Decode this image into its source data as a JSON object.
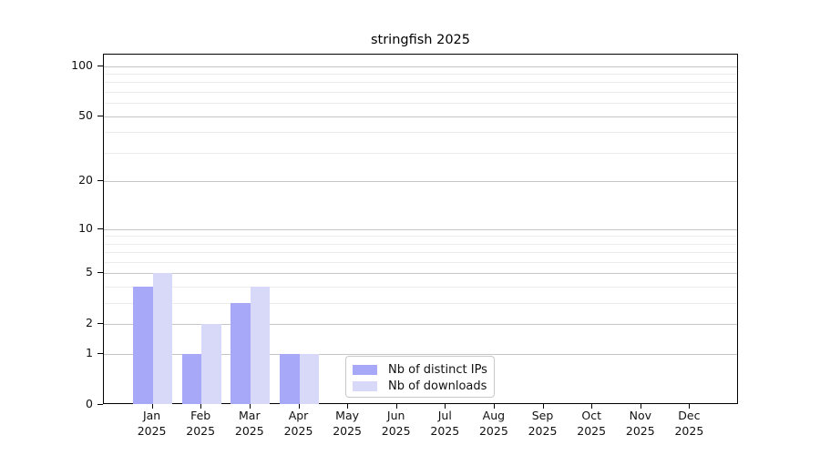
{
  "chart_data": {
    "type": "bar",
    "title": "stringfish 2025",
    "categories": [
      "Jan",
      "Feb",
      "Mar",
      "Apr",
      "May",
      "Jun",
      "Jul",
      "Aug",
      "Sep",
      "Oct",
      "Nov",
      "Dec"
    ],
    "x_tick_second_line": "2025",
    "series": [
      {
        "name": "Nb of distinct IPs",
        "color": "#a8a8f8",
        "values": [
          4,
          1,
          3,
          1,
          0,
          0,
          0,
          0,
          0,
          0,
          0,
          0
        ]
      },
      {
        "name": "Nb of downloads",
        "color": "#d8d8f8",
        "values": [
          5,
          2,
          4,
          1,
          0,
          0,
          0,
          0,
          0,
          0,
          0,
          0
        ]
      }
    ],
    "yscale": "log1p",
    "ylim": [
      0,
      117
    ],
    "yticks_major": [
      0,
      1,
      2,
      5,
      10,
      20,
      50,
      100
    ],
    "yticks_minor": [
      3,
      4,
      6,
      7,
      8,
      9,
      30,
      40,
      60,
      70,
      80,
      90
    ],
    "grid": true,
    "legend_position": "inside lower-center",
    "colors": {
      "major_grid": "#c6c6c6",
      "minor_grid": "#ececec",
      "spine": "#000000",
      "text": "#111111",
      "background": "#ffffff"
    }
  }
}
